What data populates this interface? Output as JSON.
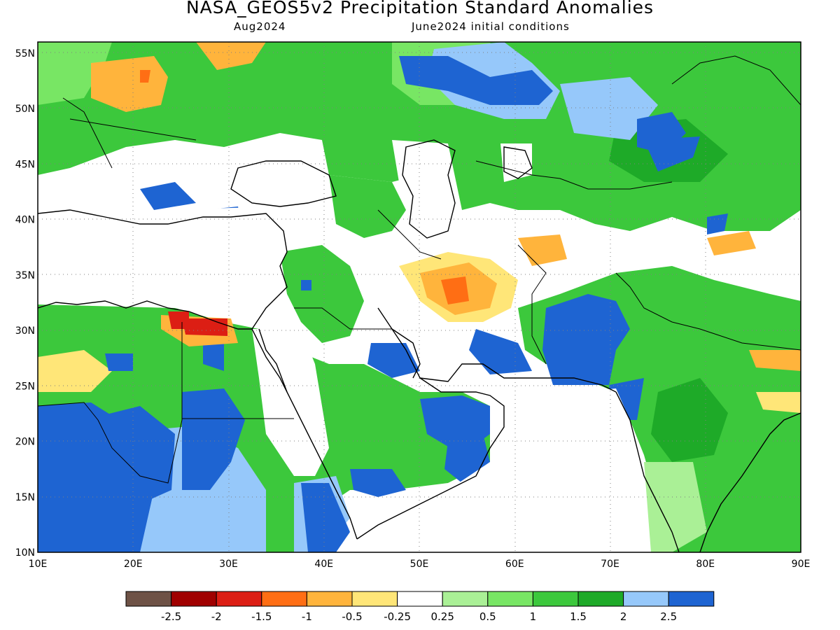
{
  "title": "NASA_GEOS5v2 Precipitation Standard Anomalies",
  "subtitle_left": "Aug2024",
  "subtitle_right": "June2024 initial conditions",
  "axes": {
    "lon_ticks": [
      "10E",
      "20E",
      "30E",
      "40E",
      "50E",
      "60E",
      "70E",
      "80E",
      "90E"
    ],
    "lat_ticks": [
      "10N",
      "15N",
      "20N",
      "25N",
      "30N",
      "35N",
      "40N",
      "45N",
      "50N",
      "55N"
    ],
    "lon_range": [
      10,
      90
    ],
    "lat_range": [
      10,
      56
    ],
    "grid": "dotted"
  },
  "colorbar": {
    "labels": [
      "-2.5",
      "-2",
      "-1.5",
      "-1",
      "-0.5",
      "-0.25",
      "0.25",
      "0.5",
      "1",
      "1.5",
      "2",
      "2.5"
    ],
    "colors": [
      "#6e5246",
      "#a00000",
      "#dc1e14",
      "#ff6e14",
      "#ffb43c",
      "#ffe678",
      "#ffffff",
      "#aaf096",
      "#78e664",
      "#3cc83c",
      "#1eaa28",
      "#96c8fa",
      "#1e64d2"
    ]
  },
  "map_regions": [
    {
      "name": "europe-dry-anomaly",
      "color": "#ffb43c",
      "lon": [
        18,
        27
      ],
      "lat": [
        48,
        54
      ]
    },
    {
      "name": "central-iran-dry-anomaly",
      "color": "#ff6e14",
      "lon": [
        51,
        56
      ],
      "lat": [
        31,
        34
      ]
    },
    {
      "name": "egypt-libya-dry-anomaly",
      "color": "#dc1e14",
      "lon": [
        24,
        29
      ],
      "lat": [
        29,
        31
      ]
    },
    {
      "name": "pakistan-wet-anomaly",
      "color": "#1e64d2",
      "lon": [
        63,
        72
      ],
      "lat": [
        23,
        31
      ]
    },
    {
      "name": "sahel-wet-anomaly",
      "color": "#1e64d2",
      "lon": [
        10,
        32
      ],
      "lat": [
        10,
        23
      ]
    },
    {
      "name": "russia-wet-anomaly",
      "color": "#1e64d2",
      "lon": [
        50,
        62
      ],
      "lat": [
        50,
        56
      ]
    }
  ]
}
